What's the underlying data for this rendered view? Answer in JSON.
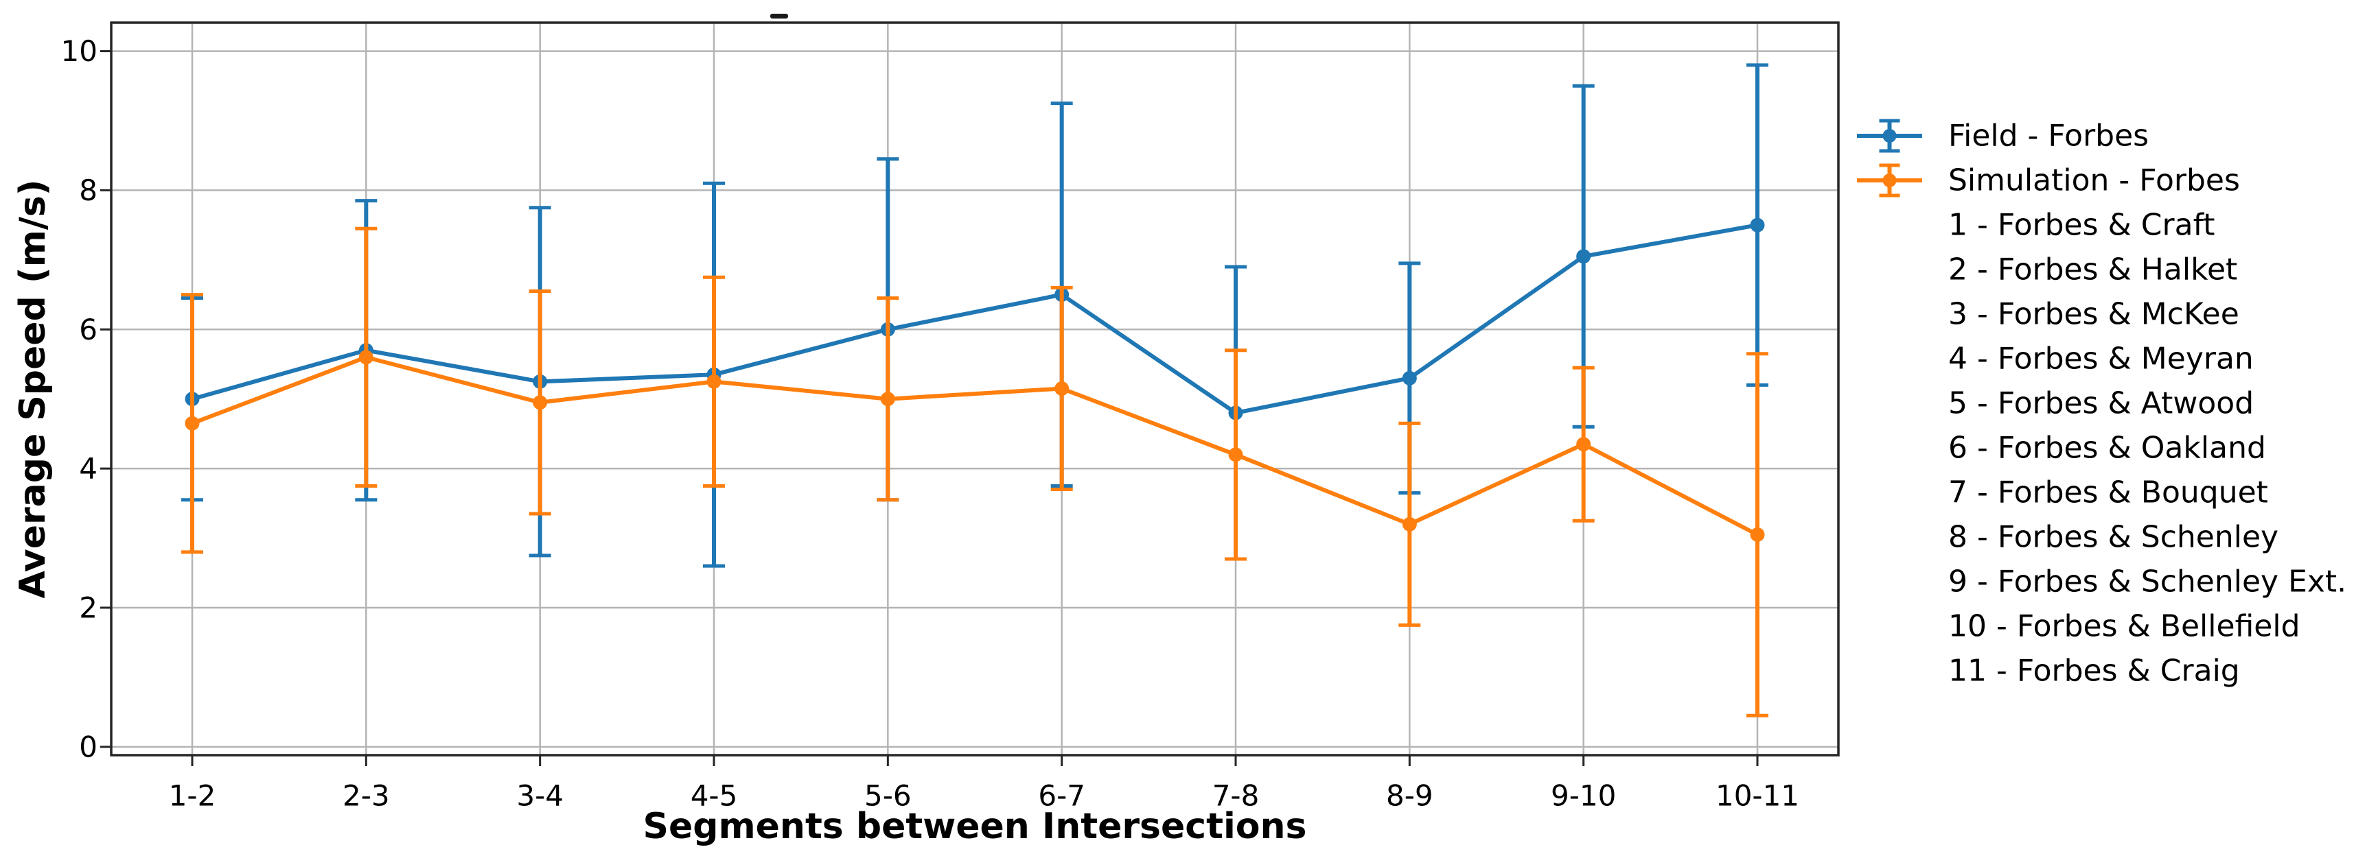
{
  "chart_data": {
    "type": "line",
    "title": "",
    "xlabel": "Segments between Intersections",
    "ylabel": "Average Speed (m/s)",
    "categories": [
      "1-2",
      "2-3",
      "3-4",
      "4-5",
      "5-6",
      "6-7",
      "7-8",
      "8-9",
      "9-10",
      "10-11"
    ],
    "yticks": [
      0,
      2,
      4,
      6,
      8,
      10
    ],
    "ylim": [
      -0.12,
      10.41
    ],
    "grid": true,
    "legend_position": "right",
    "series": [
      {
        "name": "Field - Forbes",
        "color": "#1f77b4",
        "values": [
          5.0,
          5.7,
          5.25,
          5.35,
          6.0,
          6.5,
          4.8,
          5.3,
          7.05,
          7.5
        ],
        "errors": [
          1.45,
          2.15,
          2.5,
          2.75,
          2.45,
          2.75,
          2.1,
          1.65,
          2.45,
          2.3
        ]
      },
      {
        "name": "Simulation - Forbes",
        "color": "#ff7f0e",
        "values": [
          4.65,
          5.6,
          4.95,
          5.25,
          5.0,
          5.15,
          4.2,
          3.2,
          4.35,
          3.05
        ],
        "errors": [
          1.85,
          1.85,
          1.6,
          1.5,
          1.45,
          1.45,
          1.5,
          1.45,
          1.1,
          2.6
        ]
      }
    ],
    "legend_notes": [
      "1 - Forbes & Craft",
      "2 - Forbes & Halket",
      "3 - Forbes & McKee",
      "4 - Forbes & Meyran",
      "5 - Forbes & Atwood",
      "6 - Forbes & Oakland",
      "7 - Forbes & Bouquet",
      "8 - Forbes & Schenley",
      "9 - Forbes & Schenley Ext.",
      "10 - Forbes & Bellefield",
      "11 - Forbes & Craig"
    ]
  },
  "style": {
    "grid_color": "#b4b4b4",
    "spine_color": "#262626",
    "tick_color": "#262626",
    "text_color": "#000000"
  }
}
